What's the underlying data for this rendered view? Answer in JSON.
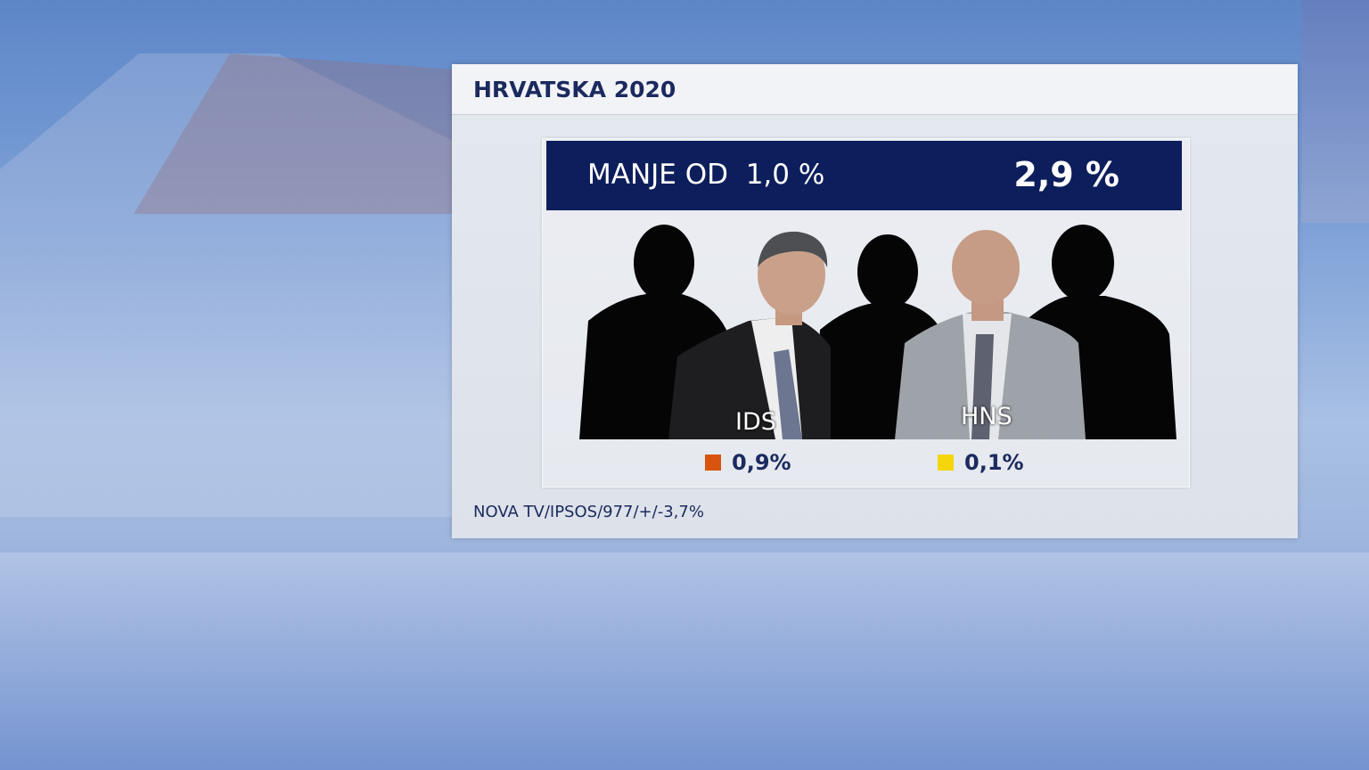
{
  "title": "HRVATSKA 2020",
  "summary": {
    "label": "MANJE OD  1,0 %",
    "value": "2,9 %"
  },
  "parties": [
    {
      "name": "IDS",
      "value": "0,9%",
      "color": "#d9540f"
    },
    {
      "name": "HNS",
      "value": "0,1%",
      "color": "#f5d60a"
    }
  ],
  "source": "NOVA TV/IPSOS/977/+/-3,7%",
  "colors": {
    "bar": "#0d1e5c",
    "text": "#1b2a5e"
  }
}
